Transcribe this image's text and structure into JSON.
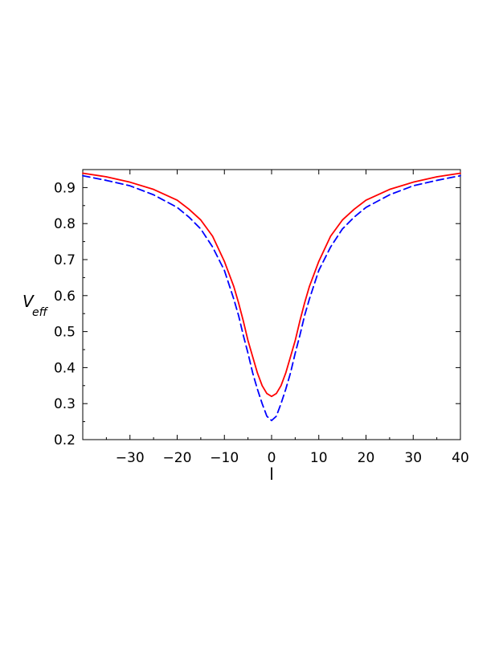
{
  "chart_data": {
    "type": "line",
    "title": "",
    "xlabel": "l",
    "ylabel": "V",
    "ylabel_subscript": "eff",
    "xlim": [
      -40,
      40
    ],
    "ylim": [
      0.2,
      0.95
    ],
    "grid": false,
    "legend": "none",
    "x_ticks": [
      -30,
      -20,
      -10,
      0,
      10,
      20,
      30,
      40
    ],
    "x_tick_labels": [
      "−30",
      "−20",
      "−10",
      "0",
      "10",
      "20",
      "30",
      "40"
    ],
    "y_ticks": [
      0.2,
      0.3,
      0.4,
      0.5,
      0.6,
      0.7,
      0.8,
      0.9
    ],
    "y_tick_labels": [
      "0.2",
      "0.3",
      "0.4",
      "0.5",
      "0.6",
      "0.7",
      "0.8",
      "0.9"
    ],
    "series": [
      {
        "color": "#ff0000",
        "dash": "solid",
        "x": [
          -40,
          -35,
          -30,
          -25,
          -20,
          -17.5,
          -15,
          -12.5,
          -10,
          -9,
          -8,
          -7,
          -6,
          -5,
          -4,
          -3,
          -2,
          -1,
          0,
          1,
          2,
          3,
          4,
          5,
          6,
          7,
          8,
          9,
          10,
          12.5,
          15,
          17.5,
          20,
          25,
          30,
          35,
          40
        ],
        "values": [
          0.94,
          0.93,
          0.915,
          0.895,
          0.865,
          0.84,
          0.81,
          0.765,
          0.695,
          0.66,
          0.625,
          0.58,
          0.53,
          0.475,
          0.43,
          0.385,
          0.35,
          0.328,
          0.32,
          0.328,
          0.35,
          0.385,
          0.43,
          0.475,
          0.53,
          0.58,
          0.625,
          0.66,
          0.695,
          0.765,
          0.81,
          0.84,
          0.865,
          0.895,
          0.915,
          0.93,
          0.94
        ]
      },
      {
        "color": "#0000ff",
        "dash": "dashed",
        "x": [
          -40,
          -35,
          -30,
          -25,
          -20,
          -17.5,
          -15,
          -12.5,
          -10,
          -9,
          -8,
          -7,
          -6,
          -5,
          -4,
          -3,
          -2,
          -1,
          0,
          1,
          2,
          3,
          4,
          5,
          6,
          7,
          8,
          9,
          10,
          12.5,
          15,
          17.5,
          20,
          25,
          30,
          35,
          40
        ],
        "values": [
          0.933,
          0.92,
          0.905,
          0.88,
          0.845,
          0.818,
          0.785,
          0.735,
          0.67,
          0.63,
          0.59,
          0.545,
          0.49,
          0.44,
          0.385,
          0.34,
          0.3,
          0.265,
          0.253,
          0.265,
          0.3,
          0.34,
          0.385,
          0.44,
          0.49,
          0.545,
          0.59,
          0.63,
          0.67,
          0.735,
          0.785,
          0.818,
          0.845,
          0.88,
          0.905,
          0.92,
          0.933
        ]
      }
    ]
  }
}
